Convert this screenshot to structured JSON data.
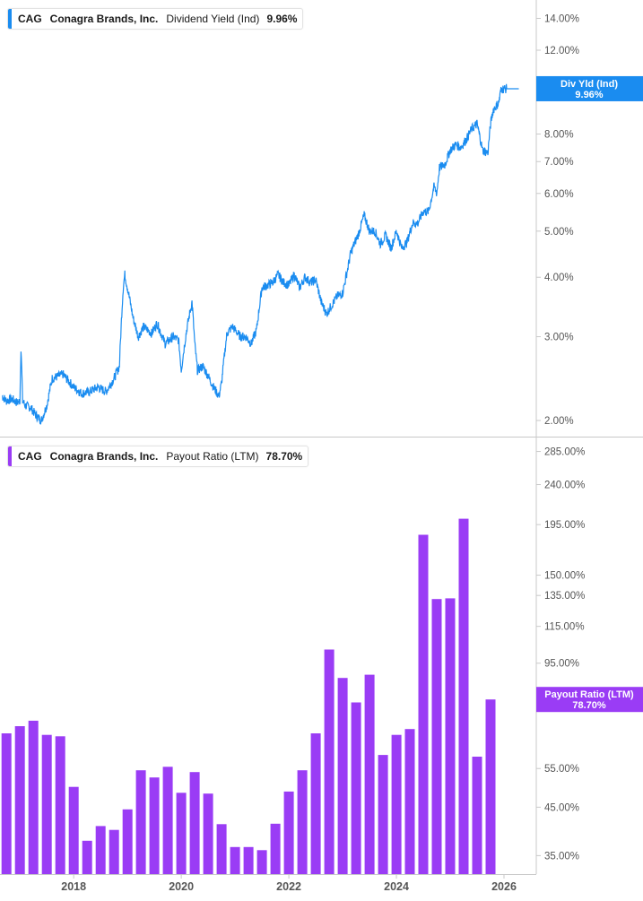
{
  "colors": {
    "yield_line": "#1a8cf0",
    "payout_bar": "#9a3cf5",
    "axis": "#c8c8c8",
    "tick_text": "#555555",
    "flag_text": "#ffffff"
  },
  "top_legend": {
    "ticker": "CAG",
    "company": "Conagra Brands, Inc.",
    "metric": "Dividend Yield (Ind)",
    "value": "9.96%"
  },
  "bottom_legend": {
    "ticker": "CAG",
    "company": "Conagra Brands, Inc.",
    "metric": "Payout Ratio (LTM)",
    "value": "78.70%"
  },
  "top_flag": {
    "label": "Div Yld (Ind)",
    "value": "9.96%"
  },
  "bottom_flag": {
    "label": "Payout Ratio (LTM)",
    "value": "78.70%"
  },
  "chart_data": [
    {
      "type": "line",
      "title": "Dividend Yield (Ind)",
      "scale": "log",
      "y_ticks": [
        "14.00%",
        "12.00%",
        "8.00%",
        "7.00%",
        "6.00%",
        "5.00%",
        "4.00%",
        "3.00%",
        "2.00%"
      ],
      "y_tick_values": [
        14,
        12,
        8,
        7,
        6,
        5,
        4,
        3,
        2
      ],
      "ylim": [
        1.85,
        15.3
      ],
      "series": [
        {
          "name": "Dividend Yield (Ind)",
          "x": [
            2016.67,
            2016.75,
            2016.85,
            2016.95,
            2017.0,
            2017.02,
            2017.05,
            2017.1,
            2017.2,
            2017.3,
            2017.4,
            2017.5,
            2017.6,
            2017.8,
            2018.0,
            2018.15,
            2018.3,
            2018.45,
            2018.6,
            2018.75,
            2018.85,
            2018.92,
            2018.95,
            2019.0,
            2019.1,
            2019.2,
            2019.3,
            2019.45,
            2019.55,
            2019.7,
            2019.85,
            2019.95,
            2020.0,
            2020.1,
            2020.2,
            2020.25,
            2020.3,
            2020.4,
            2020.5,
            2020.6,
            2020.7,
            2020.75,
            2020.85,
            2020.95,
            2021.0,
            2021.1,
            2021.2,
            2021.3,
            2021.4,
            2021.5,
            2021.6,
            2021.7,
            2021.8,
            2021.9,
            2022.0,
            2022.1,
            2022.2,
            2022.3,
            2022.4,
            2022.5,
            2022.6,
            2022.7,
            2022.8,
            2022.9,
            2023.0,
            2023.1,
            2023.15,
            2023.3,
            2023.4,
            2023.5,
            2023.6,
            2023.7,
            2023.8,
            2023.9,
            2024.0,
            2024.1,
            2024.2,
            2024.3,
            2024.4,
            2024.5,
            2024.6,
            2024.7,
            2024.75,
            2024.8,
            2024.9,
            2025.0,
            2025.1,
            2025.2,
            2025.3,
            2025.4,
            2025.5,
            2025.6,
            2025.7,
            2025.75,
            2025.8,
            2025.9,
            2025.95,
            2026.0,
            2026.05,
            2026.2,
            2026.3
          ],
          "values": [
            2.25,
            2.2,
            2.22,
            2.18,
            2.2,
            2.85,
            2.2,
            2.15,
            2.13,
            2.05,
            2.0,
            2.15,
            2.45,
            2.5,
            2.35,
            2.28,
            2.3,
            2.35,
            2.3,
            2.45,
            2.6,
            3.8,
            4.05,
            3.8,
            3.3,
            3.0,
            3.15,
            3.05,
            3.2,
            2.9,
            3.0,
            2.95,
            2.55,
            3.1,
            3.55,
            2.9,
            2.55,
            2.6,
            2.48,
            2.35,
            2.25,
            2.4,
            3.05,
            3.15,
            3.1,
            3.0,
            3.0,
            2.9,
            3.1,
            3.8,
            3.85,
            3.9,
            4.05,
            3.9,
            3.85,
            4.05,
            3.8,
            4.0,
            3.9,
            3.95,
            3.55,
            3.35,
            3.5,
            3.65,
            3.7,
            4.2,
            4.5,
            4.95,
            5.4,
            5.0,
            5.0,
            4.7,
            4.9,
            4.6,
            5.0,
            4.6,
            4.75,
            5.2,
            5.2,
            5.5,
            5.5,
            6.2,
            6.0,
            6.8,
            6.9,
            7.4,
            7.6,
            7.5,
            7.8,
            8.2,
            8.4,
            7.4,
            7.3,
            8.4,
            9.0,
            9.3,
            9.96,
            9.96,
            9.96,
            9.96,
            9.96
          ]
        }
      ]
    },
    {
      "type": "bar",
      "title": "Payout Ratio (LTM)",
      "scale": "log",
      "y_ticks": [
        "285.00%",
        "240.00%",
        "195.00%",
        "150.00%",
        "135.00%",
        "115.00%",
        "95.00%",
        "55.00%",
        "45.00%",
        "35.00%"
      ],
      "y_tick_values": [
        285,
        240,
        195,
        150,
        135,
        115,
        95,
        55,
        45,
        35
      ],
      "ylim": [
        31.8,
        305
      ],
      "series": [
        {
          "name": "Payout Ratio (LTM)",
          "x": [
            2016.75,
            2017.0,
            2017.25,
            2017.5,
            2017.75,
            2018.0,
            2018.25,
            2018.5,
            2018.75,
            2019.0,
            2019.25,
            2019.5,
            2019.75,
            2020.0,
            2020.25,
            2020.5,
            2020.75,
            2021.0,
            2021.25,
            2021.5,
            2021.75,
            2022.0,
            2022.25,
            2022.5,
            2022.75,
            2023.0,
            2023.25,
            2023.5,
            2023.75,
            2024.0,
            2024.25,
            2024.5,
            2024.75,
            2025.0,
            2025.25,
            2025.5,
            2025.75,
            2026.0
          ],
          "values": [
            66,
            68.5,
            70.5,
            65.5,
            65,
            50,
            37.8,
            40.8,
            40,
            44.5,
            54.5,
            52.5,
            55.5,
            48.5,
            54,
            48.3,
            41.2,
            36.6,
            36.6,
            36,
            41.3,
            48.8,
            54.5,
            66,
            102,
            88,
            77.5,
            89.5,
            59,
            65.5,
            67.5,
            185,
            132.5,
            133,
            201,
            58.5,
            78.7,
            null
          ]
        }
      ]
    }
  ],
  "x_axis": {
    "ticks": [
      "2018",
      "2020",
      "2022",
      "2024",
      "2026"
    ],
    "tick_values": [
      2018,
      2020,
      2022,
      2024,
      2026
    ],
    "xlim": [
      2016.63,
      2026.6
    ]
  }
}
